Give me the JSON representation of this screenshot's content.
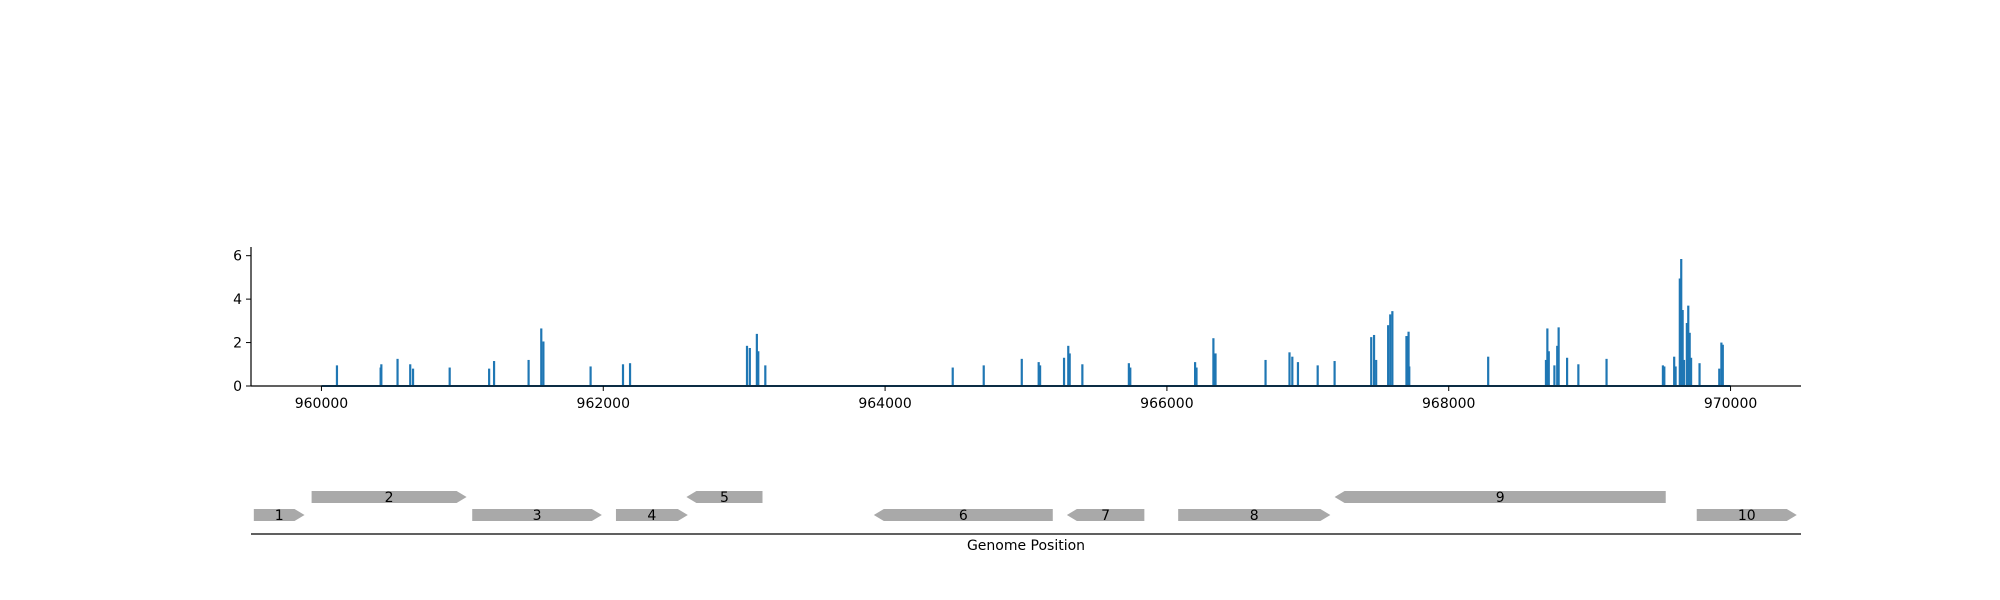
{
  "chart_data": [
    {
      "type": "bar",
      "title": "",
      "xlabel": "",
      "ylabel": "",
      "xlim": [
        959500,
        970500
      ],
      "ylim": [
        0,
        6.4
      ],
      "xticks": [
        960000,
        962000,
        964000,
        966000,
        968000,
        970000
      ],
      "xtick_labels": [
        "960000",
        "962000",
        "964000",
        "966000",
        "968000",
        "970000"
      ],
      "yticks": [
        0,
        2,
        4,
        6
      ],
      "ytick_labels": [
        "0",
        "2",
        "4",
        "6"
      ],
      "grid": false,
      "color": "#1f77b4",
      "spikes": [
        {
          "x": 960110,
          "y": 0.95
        },
        {
          "x": 960420,
          "y": 0.85
        },
        {
          "x": 960425,
          "y": 1.0
        },
        {
          "x": 960540,
          "y": 1.25
        },
        {
          "x": 960630,
          "y": 1.0
        },
        {
          "x": 960650,
          "y": 0.8
        },
        {
          "x": 960910,
          "y": 0.85
        },
        {
          "x": 961190,
          "y": 0.8
        },
        {
          "x": 961225,
          "y": 1.15
        },
        {
          "x": 961470,
          "y": 1.2
        },
        {
          "x": 961560,
          "y": 2.65
        },
        {
          "x": 961575,
          "y": 2.05
        },
        {
          "x": 961910,
          "y": 0.9
        },
        {
          "x": 962140,
          "y": 1.0
        },
        {
          "x": 962190,
          "y": 1.05
        },
        {
          "x": 963020,
          "y": 1.85
        },
        {
          "x": 963040,
          "y": 1.75
        },
        {
          "x": 963090,
          "y": 2.4
        },
        {
          "x": 963100,
          "y": 1.6
        },
        {
          "x": 963150,
          "y": 0.95
        },
        {
          "x": 964480,
          "y": 0.85
        },
        {
          "x": 964700,
          "y": 0.95
        },
        {
          "x": 964970,
          "y": 1.25
        },
        {
          "x": 965090,
          "y": 1.1
        },
        {
          "x": 965100,
          "y": 0.95
        },
        {
          "x": 965270,
          "y": 1.3
        },
        {
          "x": 965300,
          "y": 1.85
        },
        {
          "x": 965310,
          "y": 1.5
        },
        {
          "x": 965400,
          "y": 1.0
        },
        {
          "x": 965730,
          "y": 1.05
        },
        {
          "x": 965740,
          "y": 0.85
        },
        {
          "x": 966200,
          "y": 1.1
        },
        {
          "x": 966210,
          "y": 0.85
        },
        {
          "x": 966330,
          "y": 2.2
        },
        {
          "x": 966345,
          "y": 1.5
        },
        {
          "x": 966700,
          "y": 1.2
        },
        {
          "x": 966870,
          "y": 1.55
        },
        {
          "x": 966890,
          "y": 1.35
        },
        {
          "x": 966930,
          "y": 1.1
        },
        {
          "x": 967070,
          "y": 0.95
        },
        {
          "x": 967190,
          "y": 1.15
        },
        {
          "x": 967450,
          "y": 2.25
        },
        {
          "x": 967470,
          "y": 2.35
        },
        {
          "x": 967485,
          "y": 1.2
        },
        {
          "x": 967570,
          "y": 2.8
        },
        {
          "x": 967585,
          "y": 3.3
        },
        {
          "x": 967600,
          "y": 3.45
        },
        {
          "x": 967700,
          "y": 2.3
        },
        {
          "x": 967715,
          "y": 2.5
        },
        {
          "x": 967720,
          "y": 0.9
        },
        {
          "x": 968280,
          "y": 1.35
        },
        {
          "x": 968690,
          "y": 1.2
        },
        {
          "x": 968700,
          "y": 2.65
        },
        {
          "x": 968710,
          "y": 1.6
        },
        {
          "x": 968750,
          "y": 0.95
        },
        {
          "x": 968770,
          "y": 1.85
        },
        {
          "x": 968780,
          "y": 2.7
        },
        {
          "x": 968840,
          "y": 1.3
        },
        {
          "x": 968920,
          "y": 1.0
        },
        {
          "x": 969120,
          "y": 1.25
        },
        {
          "x": 969520,
          "y": 0.95
        },
        {
          "x": 969530,
          "y": 0.9
        },
        {
          "x": 969600,
          "y": 1.35
        },
        {
          "x": 969610,
          "y": 0.9
        },
        {
          "x": 969640,
          "y": 4.95
        },
        {
          "x": 969650,
          "y": 5.85
        },
        {
          "x": 969660,
          "y": 3.5
        },
        {
          "x": 969670,
          "y": 1.2
        },
        {
          "x": 969690,
          "y": 2.9
        },
        {
          "x": 969700,
          "y": 3.7
        },
        {
          "x": 969710,
          "y": 2.45
        },
        {
          "x": 969720,
          "y": 1.3
        },
        {
          "x": 969780,
          "y": 1.05
        },
        {
          "x": 969920,
          "y": 0.8
        },
        {
          "x": 969935,
          "y": 2.0
        },
        {
          "x": 969945,
          "y": 1.9
        }
      ]
    },
    {
      "type": "gene_track",
      "xlabel": "Genome Position",
      "genes": [
        {
          "label": "1",
          "start": 959520,
          "end": 959880,
          "strand": "+",
          "row": 0
        },
        {
          "label": "2",
          "start": 959930,
          "end": 961030,
          "strand": "+",
          "row": 1
        },
        {
          "label": "3",
          "start": 961070,
          "end": 961990,
          "strand": "+",
          "row": 0
        },
        {
          "label": "4",
          "start": 962090,
          "end": 962600,
          "strand": "+",
          "row": 0
        },
        {
          "label": "5",
          "start": 962590,
          "end": 963130,
          "strand": "-",
          "row": 1
        },
        {
          "label": "6",
          "start": 963920,
          "end": 965190,
          "strand": "-",
          "row": 0
        },
        {
          "label": "7",
          "start": 965290,
          "end": 965840,
          "strand": "-",
          "row": 0
        },
        {
          "label": "8",
          "start": 966080,
          "end": 967160,
          "strand": "+",
          "row": 0
        },
        {
          "label": "9",
          "start": 967190,
          "end": 969540,
          "strand": "-",
          "row": 1
        },
        {
          "label": "10",
          "start": 969760,
          "end": 970470,
          "strand": "+",
          "row": 0
        }
      ],
      "gene_color": "#a9a9a9"
    }
  ]
}
